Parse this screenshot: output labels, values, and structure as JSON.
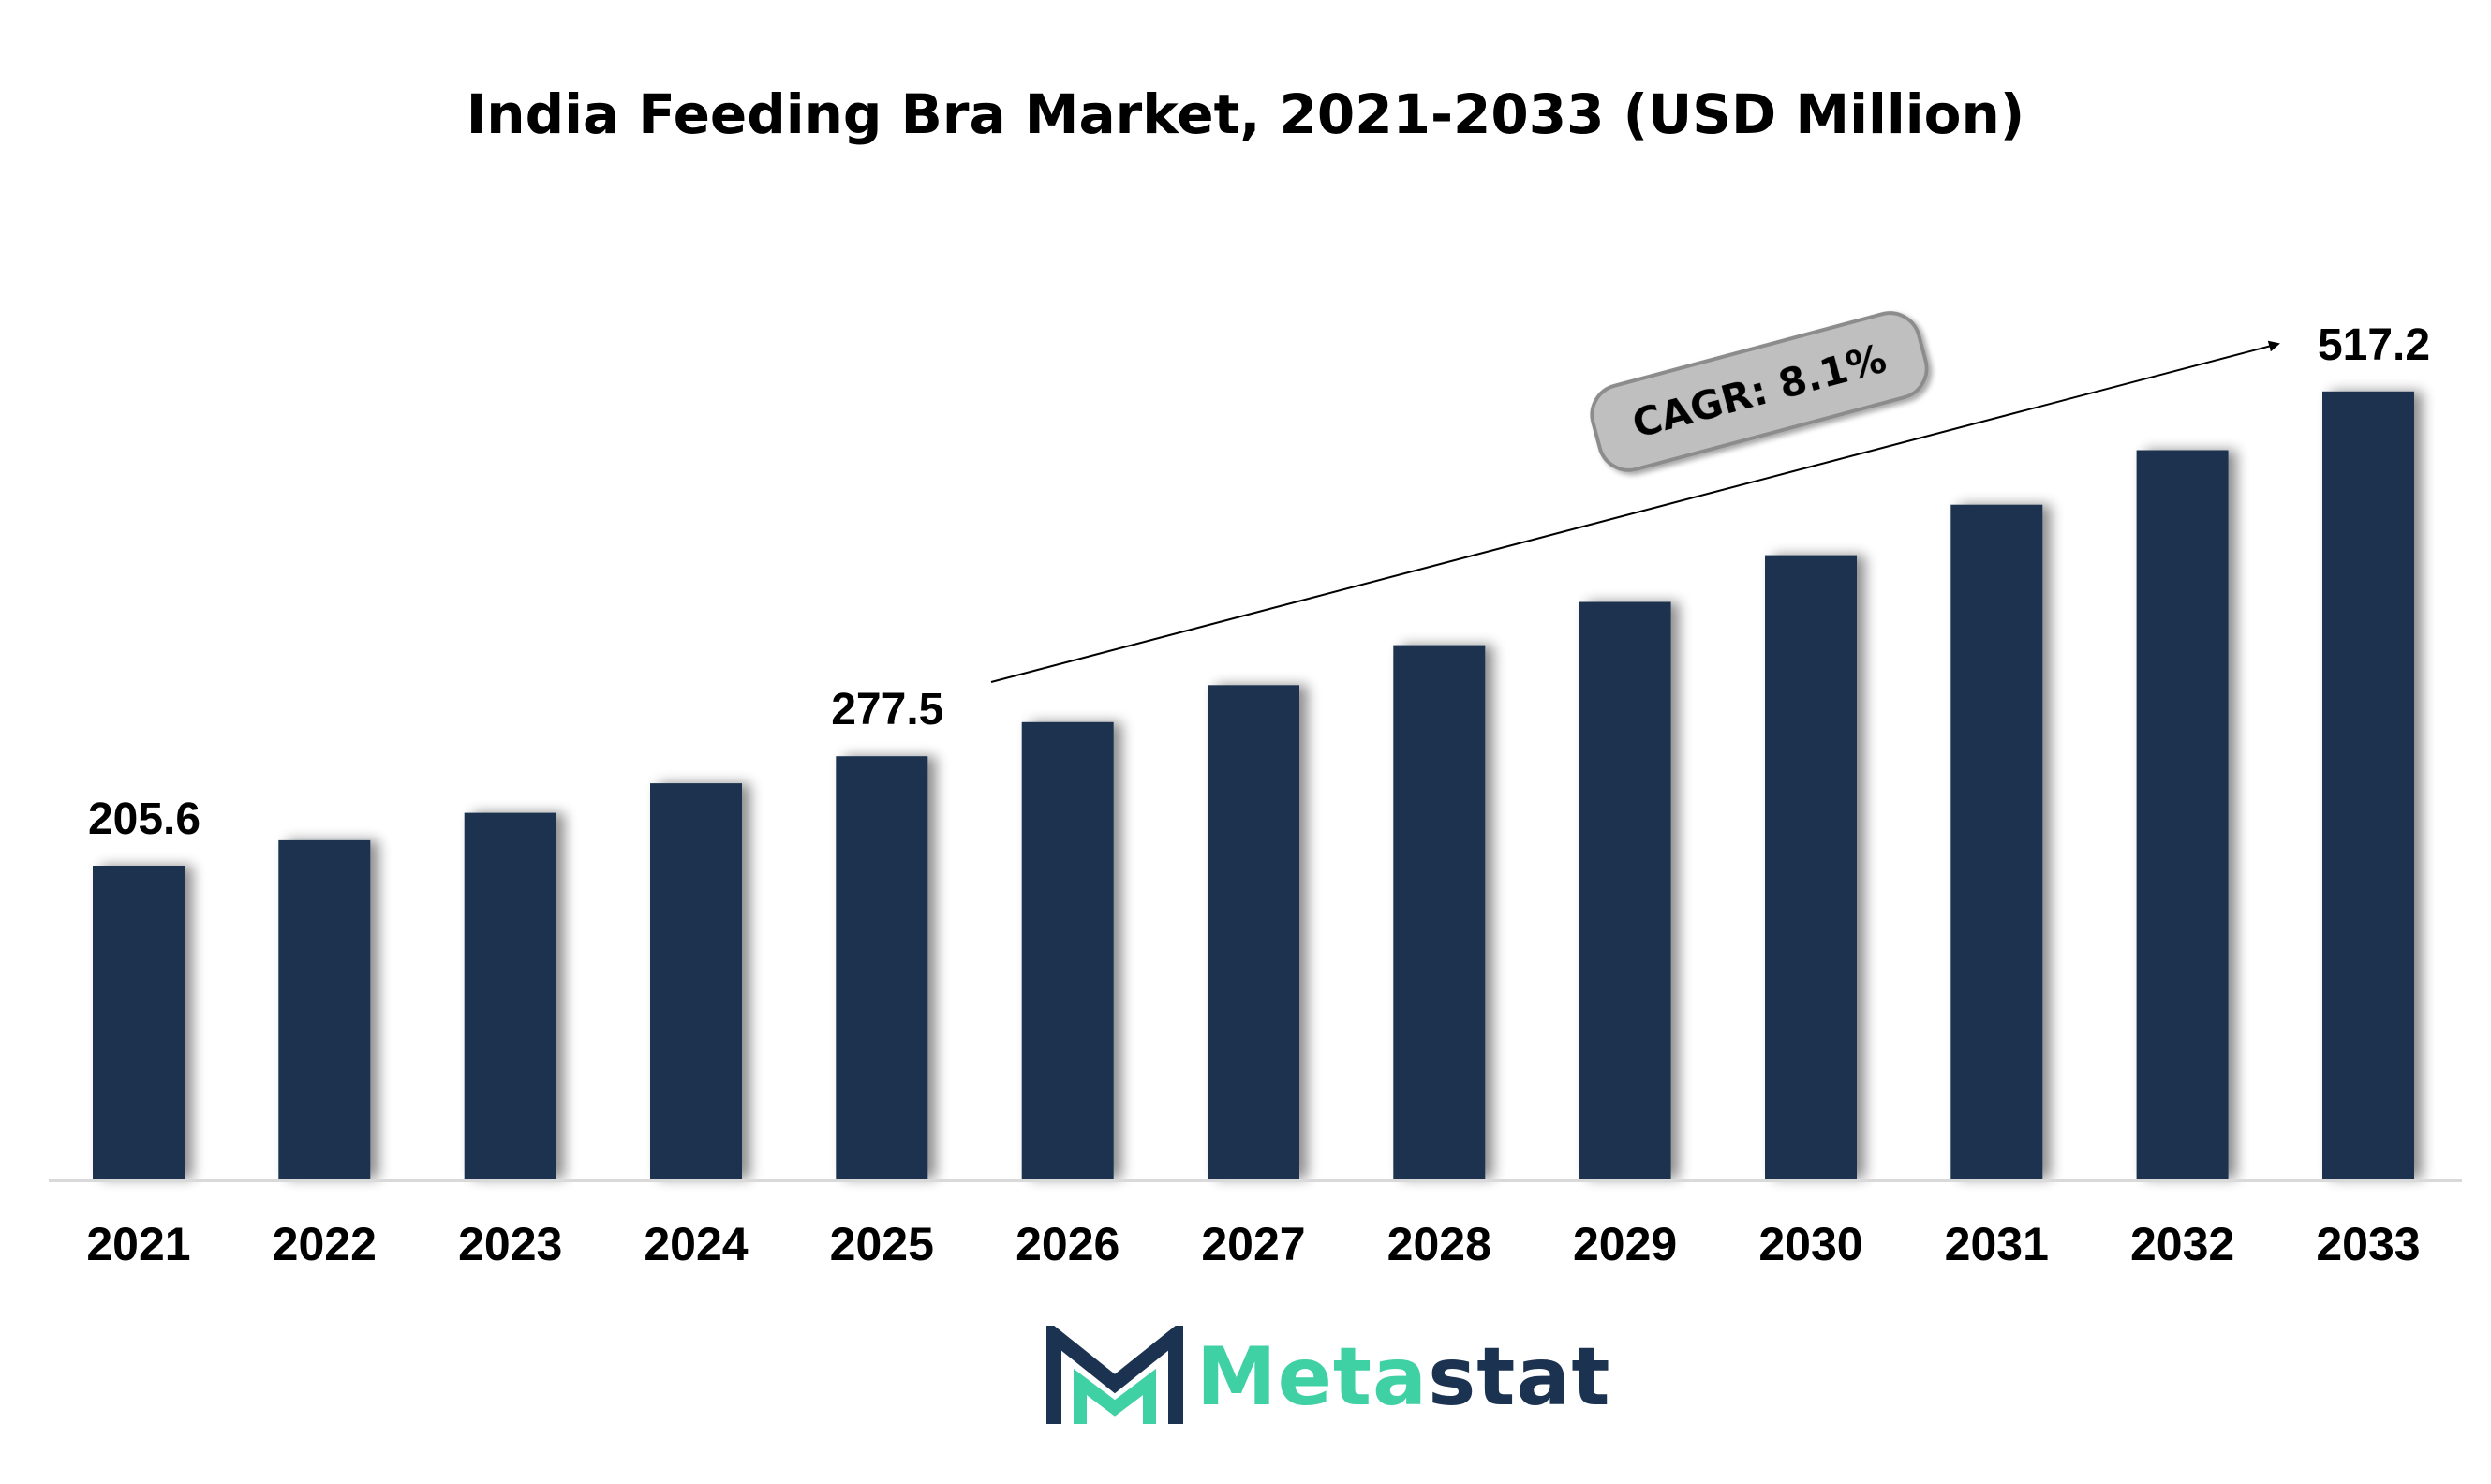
{
  "title": "India Feeding Bra Market, 2021-2033 (USD Million)",
  "chart_data": {
    "type": "bar",
    "title": "India Feeding Bra Market, 2021-2033 (USD Million)",
    "categories": [
      "2021",
      "2022",
      "2023",
      "2024",
      "2025",
      "2026",
      "2027",
      "2028",
      "2029",
      "2030",
      "2031",
      "2032",
      "2033"
    ],
    "values": [
      205.6,
      222.3,
      240.3,
      259.7,
      277.5,
      299.9,
      324.2,
      350.5,
      378.9,
      409.6,
      442.8,
      478.6,
      517.2
    ],
    "data_labels": [
      {
        "category": "2021",
        "text": "205.6"
      },
      {
        "category": "2025",
        "text": "277.5"
      },
      {
        "category": "2033",
        "text": "517.2"
      }
    ],
    "annotation": "CAGR: 8.1%",
    "ylim": [
      0,
      560
    ],
    "grid": false,
    "bar_color": "#1b3350"
  },
  "logo": {
    "part1": "Meta",
    "part2": "stat",
    "color1": "#3fd0a4",
    "color2": "#1b3350"
  }
}
